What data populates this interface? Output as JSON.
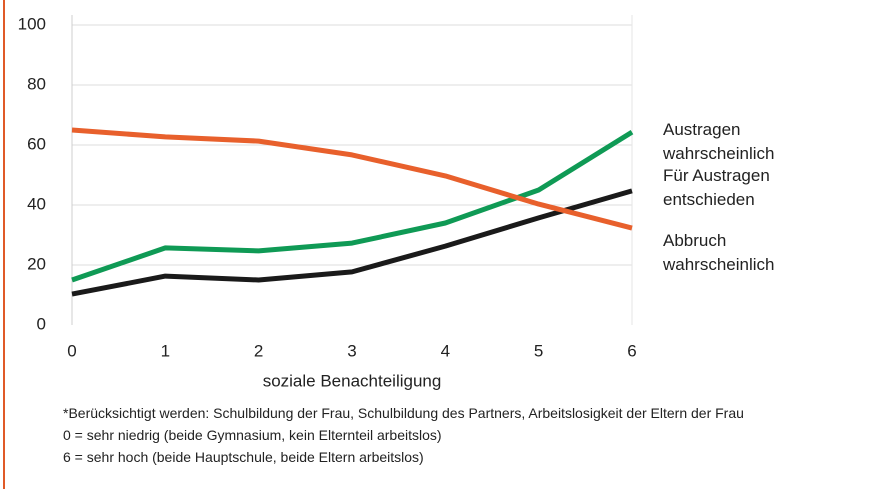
{
  "chart_data": {
    "type": "line",
    "x": [
      0,
      1,
      2,
      3,
      4,
      5,
      6
    ],
    "xlim": [
      0,
      6
    ],
    "xticks": [
      0,
      1,
      2,
      3,
      4,
      5,
      6
    ],
    "ylim": [
      0,
      100
    ],
    "yticks": [
      0,
      20,
      40,
      60,
      80,
      100
    ],
    "grid": true,
    "xlabel": "soziale Benachteiligung",
    "series": [
      {
        "name": "Austragen wahrscheinlich",
        "color": "#0f9a55",
        "values": [
          15,
          25.7,
          24.7,
          27.3,
          34,
          45,
          64.3
        ]
      },
      {
        "name": "Für Austragen entschieden",
        "color": "#1a1a1a",
        "values": [
          10.3,
          16.3,
          15,
          17.7,
          26.3,
          35.7,
          44.7
        ]
      },
      {
        "name": "Abbruch wahrscheinlich",
        "color": "#e8602c",
        "values": [
          65,
          62.7,
          61.3,
          56.7,
          49.7,
          40.3,
          32.3
        ]
      }
    ],
    "notes": [
      "*Berücksichtigt werden: Schulbildung der Frau, Schulbildung des Partners, Arbeitslosigkeit der Eltern der Frau",
      "0 = sehr niedrig (beide Gymnasium, kein Elternteil arbeitslos)",
      "6 = sehr hoch (beide Hauptschule, beide Eltern arbeitslos)"
    ]
  }
}
